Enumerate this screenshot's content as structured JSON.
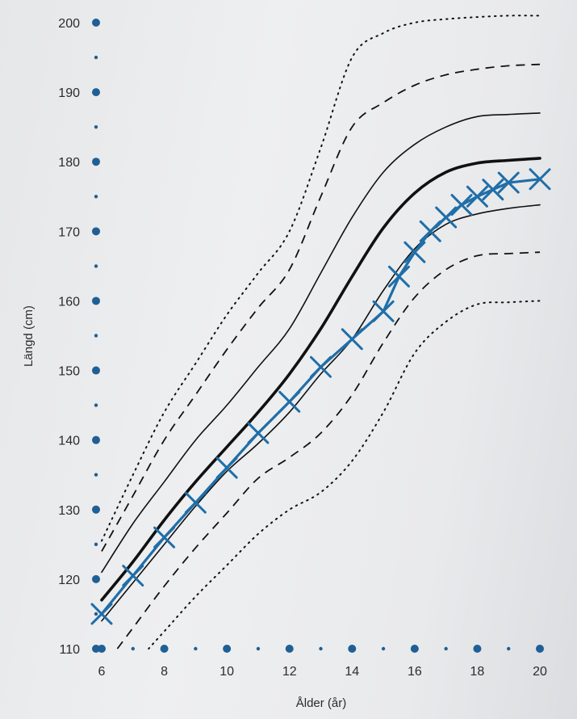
{
  "chart_data": {
    "type": "line",
    "title": "",
    "xlabel": "Ålder (år)",
    "ylabel": "Längd (cm)",
    "xlim": [
      6,
      20
    ],
    "ylim": [
      110,
      200
    ],
    "x_ticks": [
      "6",
      "8",
      "10",
      "12",
      "14",
      "16",
      "18",
      "20"
    ],
    "y_ticks": [
      "110",
      "120",
      "130",
      "140",
      "150",
      "160",
      "170",
      "180",
      "190",
      "200"
    ],
    "grid": false,
    "legend": "none",
    "colors": {
      "measured": "#1f6ea8",
      "reference": "#111111",
      "axis_dots": "#1f5f96"
    },
    "reference_curves": [
      {
        "style": "dotted",
        "x": [
          6,
          7,
          8,
          9,
          10,
          11,
          12,
          13,
          14,
          15,
          16,
          17,
          18,
          19,
          20
        ],
        "y": [
          125.5,
          135,
          144,
          151,
          158,
          164,
          170,
          182,
          195,
          198.5,
          200,
          200.5,
          200.8,
          201,
          201
        ]
      },
      {
        "style": "dashed",
        "x": [
          6,
          7,
          8,
          9,
          10,
          11,
          12,
          13,
          14,
          15,
          16,
          17,
          18,
          19,
          20
        ],
        "y": [
          124,
          132,
          140,
          146.5,
          153,
          159,
          164.5,
          175,
          185,
          188.5,
          191,
          192.5,
          193.3,
          193.8,
          194
        ]
      },
      {
        "style": "thin",
        "x": [
          6,
          7,
          8,
          9,
          10,
          11,
          12,
          13,
          14,
          15,
          16,
          17,
          18,
          19,
          20
        ],
        "y": [
          121,
          128,
          134,
          140,
          145,
          150.5,
          156,
          164,
          172,
          178.5,
          182.5,
          185,
          186.5,
          186.8,
          187
        ]
      },
      {
        "style": "thick",
        "x": [
          6,
          7,
          8,
          9,
          10,
          11,
          12,
          13,
          14,
          15,
          16,
          17,
          18,
          19,
          20
        ],
        "y": [
          117,
          122.5,
          128.5,
          134,
          139,
          144,
          149.5,
          156,
          163.5,
          170.5,
          175.5,
          178.5,
          179.8,
          180.2,
          180.5
        ]
      },
      {
        "style": "thin",
        "x": [
          6,
          7,
          8,
          9,
          10,
          11,
          12,
          13,
          14,
          15,
          16,
          17,
          18,
          19,
          20
        ],
        "y": [
          114,
          119.5,
          125,
          130.5,
          135.5,
          139.5,
          144,
          149.5,
          154.5,
          161.5,
          167.5,
          171,
          172.5,
          173.3,
          173.8
        ]
      },
      {
        "style": "dashed",
        "x": [
          6.5,
          7,
          8,
          9,
          10,
          11,
          12,
          13,
          14,
          15,
          16,
          17,
          18,
          19,
          20
        ],
        "y": [
          110,
          113,
          119,
          124.5,
          129.5,
          134.5,
          137.5,
          141,
          146.5,
          154,
          160.5,
          164.5,
          166.5,
          166.8,
          167
        ]
      },
      {
        "style": "dotted",
        "x": [
          7.5,
          8,
          9,
          10,
          11,
          12,
          13,
          14,
          15,
          16,
          17,
          18,
          19,
          20
        ],
        "y": [
          110,
          112.5,
          117.5,
          122,
          126.5,
          130,
          132.5,
          137,
          144,
          152.5,
          157,
          159.5,
          159.8,
          160
        ]
      }
    ],
    "series": [
      {
        "x": [
          6,
          7,
          8,
          9,
          10,
          11,
          12,
          13,
          14,
          15,
          15.5,
          16,
          16.5,
          17,
          17.5,
          18,
          18.5,
          19,
          20
        ],
        "y": [
          115,
          120.5,
          126,
          131,
          136,
          141,
          145.5,
          150.5,
          154.5,
          158.5,
          163.5,
          167,
          170,
          172,
          173.8,
          175,
          176,
          177,
          177.5
        ]
      }
    ]
  }
}
